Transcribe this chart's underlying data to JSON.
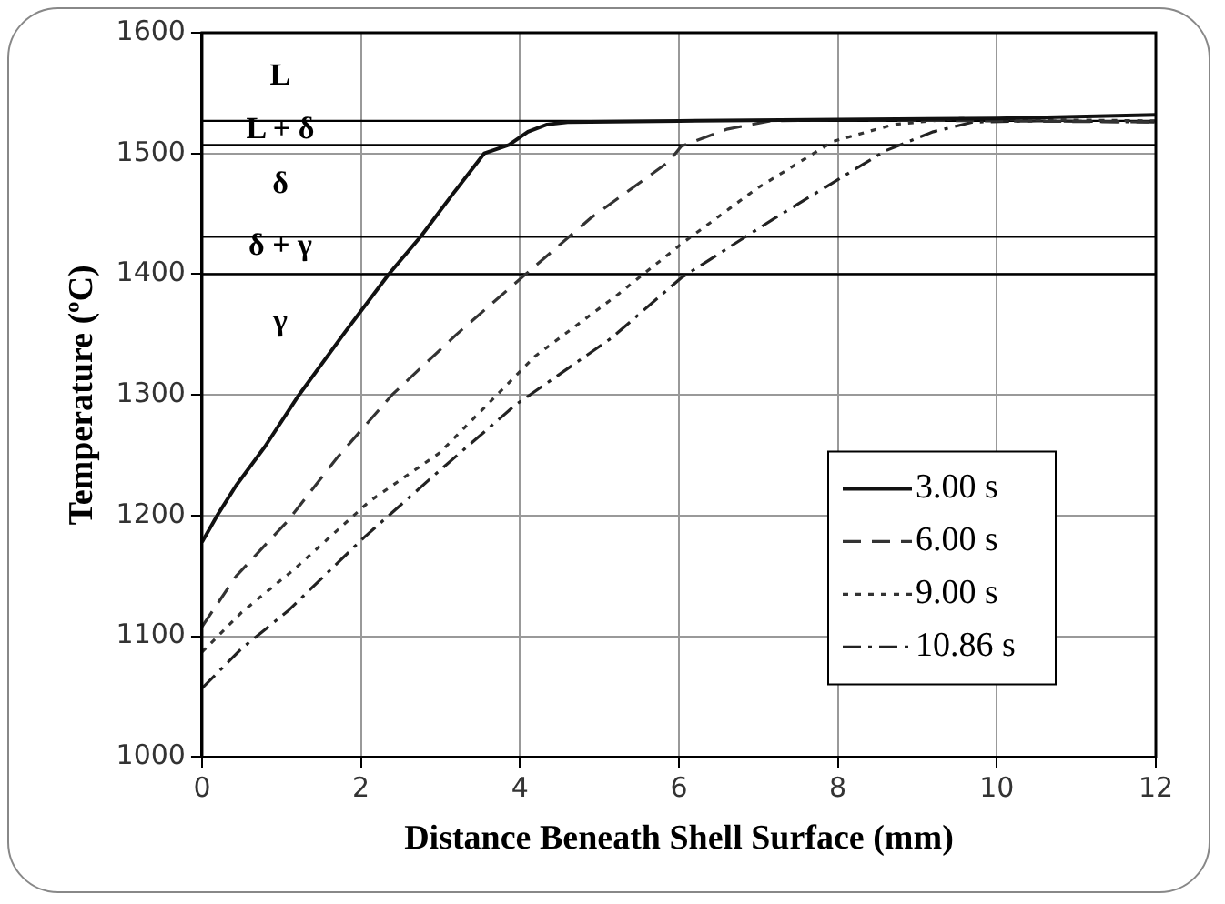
{
  "chart_data": {
    "type": "line",
    "xlabel": "Distance Beneath Shell Surface (mm)",
    "ylabel": "Temperature (ºC)",
    "xlim": [
      0,
      12
    ],
    "xticks": [
      0,
      2,
      4,
      6,
      8,
      10,
      12
    ],
    "ylim": [
      1000,
      1600
    ],
    "yticks": [
      1000,
      1100,
      1200,
      1300,
      1400,
      1500,
      1600
    ],
    "grid": true,
    "legend": "bottom right",
    "marker": "none",
    "ref_lines": [
      {
        "axis": "y",
        "value": 1527,
        "color": "#000000"
      },
      {
        "axis": "y",
        "value": 1507,
        "color": "#000000"
      },
      {
        "axis": "y",
        "value": 1431,
        "color": "#000000"
      },
      {
        "axis": "y",
        "value": 1400,
        "color": "#000000"
      }
    ],
    "annotations": [
      "L",
      "L + δ",
      "δ",
      "δ + γ",
      "γ"
    ],
    "series": [
      {
        "name": "3.00 s",
        "color": "#111111",
        "line_style": "solid",
        "x": [
          0,
          0.19,
          0.43,
          0.79,
          1.22,
          1.8,
          2.35,
          2.75,
          3.15,
          3.55,
          3.86,
          4.1,
          4.34,
          4.6,
          6,
          8,
          10,
          12
        ],
        "values": [
          1178,
          1200,
          1225,
          1257,
          1300,
          1352,
          1400,
          1431,
          1466,
          1500,
          1507,
          1518,
          1524,
          1526,
          1527,
          1528,
          1529,
          1532
        ]
      },
      {
        "name": "6.00 s",
        "color": "#333333",
        "line_style": "dashed",
        "x": [
          0,
          0.43,
          1.07,
          1.7,
          2.39,
          3.2,
          3.95,
          4.9,
          5.87,
          6.03,
          6.6,
          7.15,
          8,
          10,
          12
        ],
        "values": [
          1108,
          1150,
          1195,
          1248,
          1300,
          1350,
          1393,
          1447,
          1493,
          1506,
          1520,
          1527,
          1528,
          1527,
          1526
        ]
      },
      {
        "name": "9.00 s",
        "color": "#333333",
        "line_style": "dotted",
        "x": [
          0,
          0.5,
          1.15,
          2.11,
          2.99,
          4.19,
          5.23,
          6.03,
          6.98,
          7.94,
          8.7,
          9.5,
          10.5,
          12
        ],
        "values": [
          1087,
          1120,
          1155,
          1212,
          1252,
          1332,
          1383,
          1425,
          1471,
          1510,
          1524,
          1529,
          1528,
          1527
        ]
      },
      {
        "name": "10.86 s",
        "color": "#222222",
        "line_style": "dashdot",
        "x": [
          0,
          0.5,
          1.08,
          2.04,
          3,
          3.95,
          5.15,
          6.03,
          7.22,
          8.59,
          9.2,
          9.7,
          10.5,
          12
        ],
        "values": [
          1057,
          1090,
          1121,
          1182,
          1238,
          1292,
          1347,
          1397,
          1447,
          1502,
          1518,
          1526,
          1527,
          1526
        ]
      }
    ]
  }
}
